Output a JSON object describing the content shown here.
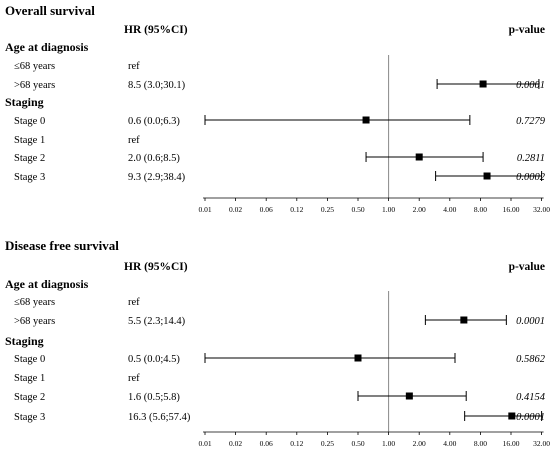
{
  "chart_data": [
    {
      "type": "forest",
      "title": "Overall  survival",
      "col_hr": "HR (95%CI)",
      "col_p": "p-value",
      "x_scale": "log2",
      "xlim": [
        0.01,
        32
      ],
      "x_ticks": [
        "0.01",
        "0.02",
        "0.06",
        "0.12",
        "0.25",
        "0.50",
        "1.00",
        "2.00",
        "4.00",
        "8.00",
        "16.00",
        "32.00"
      ],
      "x_tick_values": [
        0.01,
        0.02,
        0.06,
        0.12,
        0.25,
        0.5,
        1,
        2,
        4,
        8,
        16,
        32
      ],
      "reference_line": 1,
      "groups": [
        {
          "label": "Age at diagnosis",
          "rows": [
            {
              "label": "≤68 years",
              "hr_text": "ref",
              "p": ""
            },
            {
              "label": ">68 years",
              "hr_text": "8.5 (3.0;30.1)",
              "hr": 8.5,
              "lo": 3.0,
              "hi": 30.1,
              "p": "0.0001"
            }
          ]
        },
        {
          "label": "Staging",
          "rows": [
            {
              "label": "Stage 0",
              "hr_text": "0.6 (0.0;6.3)",
              "hr": 0.6,
              "lo": 0.01,
              "hi": 6.3,
              "p": "0.7279"
            },
            {
              "label": "Stage 1",
              "hr_text": "ref",
              "p": ""
            },
            {
              "label": "Stage 2",
              "hr_text": "2.0 (0.6;8.5)",
              "hr": 2.0,
              "lo": 0.6,
              "hi": 8.5,
              "p": "0.2811"
            },
            {
              "label": "Stage 3",
              "hr_text": "9.3 (2.9;38.4)",
              "hr": 9.3,
              "lo": 2.9,
              "hi": 38.4,
              "p": "0.0002"
            }
          ]
        }
      ]
    },
    {
      "type": "forest",
      "title": "Disease free survival",
      "col_hr": "HR (95%CI)",
      "col_p": "p-value",
      "x_scale": "log2",
      "xlim": [
        0.01,
        32
      ],
      "x_ticks": [
        "0.01",
        "0.02",
        "0.06",
        "0.12",
        "0.25",
        "0.50",
        "1.00",
        "2.00",
        "4.00",
        "8.00",
        "16.00",
        "32.00"
      ],
      "x_tick_values": [
        0.01,
        0.02,
        0.06,
        0.12,
        0.25,
        0.5,
        1,
        2,
        4,
        8,
        16,
        32
      ],
      "reference_line": 1,
      "groups": [
        {
          "label": "Age at diagnosis",
          "rows": [
            {
              "label": "≤68 years",
              "hr_text": "ref",
              "p": ""
            },
            {
              "label": ">68 years",
              "hr_text": "5.5 (2.3;14.4)",
              "hr": 5.5,
              "lo": 2.3,
              "hi": 14.4,
              "p": "0.0001"
            }
          ]
        },
        {
          "label": "Staging",
          "rows": [
            {
              "label": "Stage 0",
              "hr_text": "0.5 (0.0;4.5)",
              "hr": 0.5,
              "lo": 0.01,
              "hi": 4.5,
              "p": "0.5862"
            },
            {
              "label": "Stage 1",
              "hr_text": "ref",
              "p": ""
            },
            {
              "label": "Stage 2",
              "hr_text": "1.6 (0.5;5.8)",
              "hr": 1.6,
              "lo": 0.5,
              "hi": 5.8,
              "p": "0.4154"
            },
            {
              "label": "Stage 3",
              "hr_text": "16.3 (5.6;57.4)",
              "hr": 16.3,
              "lo": 5.6,
              "hi": 57.4,
              "p": "0.0001"
            }
          ]
        }
      ]
    }
  ]
}
